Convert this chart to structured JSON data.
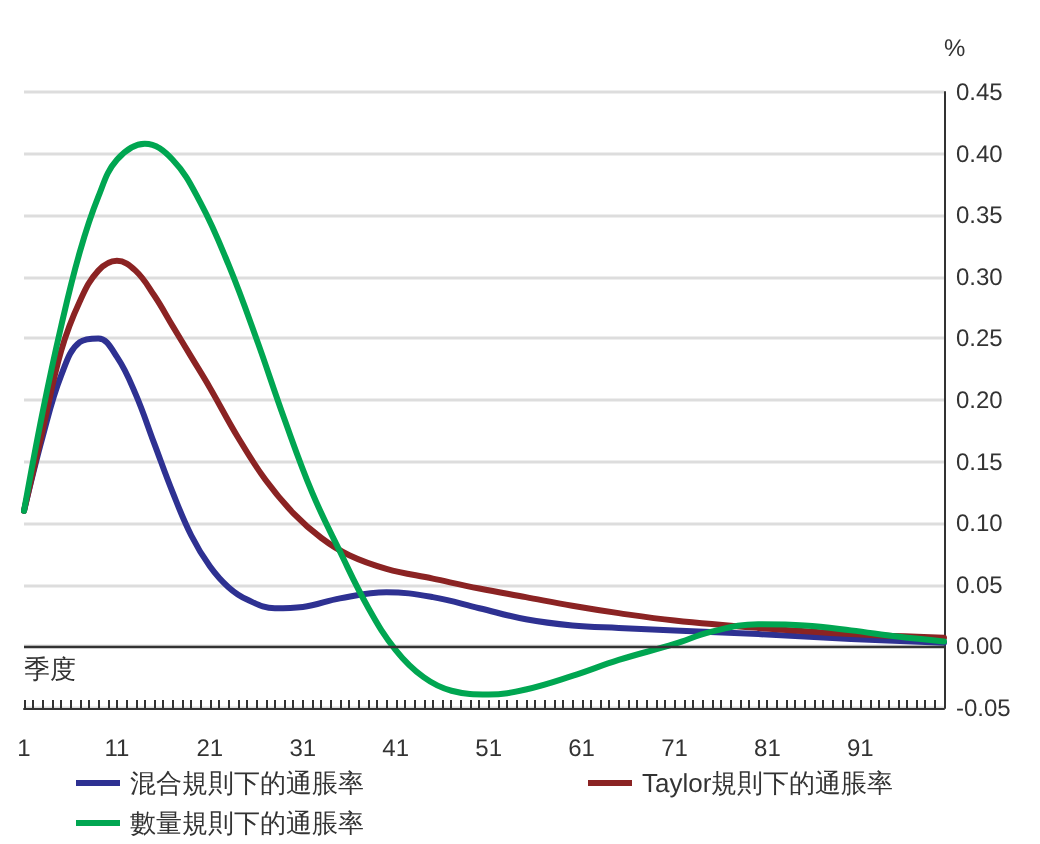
{
  "chart_data": {
    "type": "line",
    "xlabel": "季度",
    "ylabel": "%",
    "xlim": [
      1,
      100
    ],
    "xticks": [
      1,
      {
        "value": 2,
        "label": null
      },
      {
        "value": 3,
        "label": null
      },
      {
        "value": 4,
        "label": null
      },
      {
        "value": 5,
        "label": null
      },
      {
        "value": 6,
        "label": null
      },
      {
        "value": 7,
        "label": null
      },
      {
        "value": 8,
        "label": null
      },
      {
        "value": 9,
        "label": null
      },
      {
        "value": 10,
        "label": null
      },
      11,
      {
        "value": 12,
        "label": null
      },
      {
        "value": 13,
        "label": null
      },
      {
        "value": 14,
        "label": null
      },
      {
        "value": 15,
        "label": null
      },
      {
        "value": 16,
        "label": null
      },
      {
        "value": 17,
        "label": null
      },
      {
        "value": 18,
        "label": null
      },
      {
        "value": 19,
        "label": null
      },
      {
        "value": 20,
        "label": null
      },
      21,
      {
        "value": 22,
        "label": null
      },
      {
        "value": 23,
        "label": null
      },
      {
        "value": 24,
        "label": null
      },
      {
        "value": 25,
        "label": null
      },
      {
        "value": 26,
        "label": null
      },
      {
        "value": 27,
        "label": null
      },
      {
        "value": 28,
        "label": null
      },
      {
        "value": 29,
        "label": null
      },
      {
        "value": 30,
        "label": null
      },
      31,
      {
        "value": 32,
        "label": null
      },
      {
        "value": 33,
        "label": null
      },
      {
        "value": 34,
        "label": null
      },
      {
        "value": 35,
        "label": null
      },
      {
        "value": 36,
        "label": null
      },
      {
        "value": 37,
        "label": null
      },
      {
        "value": 38,
        "label": null
      },
      {
        "value": 39,
        "label": null
      },
      {
        "value": 40,
        "label": null
      },
      41,
      {
        "value": 42,
        "label": null
      },
      {
        "value": 43,
        "label": null
      },
      {
        "value": 44,
        "label": null
      },
      {
        "value": 45,
        "label": null
      },
      {
        "value": 46,
        "label": null
      },
      {
        "value": 47,
        "label": null
      },
      {
        "value": 48,
        "label": null
      },
      {
        "value": 49,
        "label": null
      },
      {
        "value": 50,
        "label": null
      },
      51,
      {
        "value": 52,
        "label": null
      },
      {
        "value": 53,
        "label": null
      },
      {
        "value": 54,
        "label": null
      },
      {
        "value": 55,
        "label": null
      },
      {
        "value": 56,
        "label": null
      },
      {
        "value": 57,
        "label": null
      },
      {
        "value": 58,
        "label": null
      },
      {
        "value": 59,
        "label": null
      },
      {
        "value": 60,
        "label": null
      },
      61,
      {
        "value": 62,
        "label": null
      },
      {
        "value": 63,
        "label": null
      },
      {
        "value": 64,
        "label": null
      },
      {
        "value": 65,
        "label": null
      },
      {
        "value": 66,
        "label": null
      },
      {
        "value": 67,
        "label": null
      },
      {
        "value": 68,
        "label": null
      },
      {
        "value": 69,
        "label": null
      },
      {
        "value": 70,
        "label": null
      },
      71,
      {
        "value": 72,
        "label": null
      },
      {
        "value": 73,
        "label": null
      },
      {
        "value": 74,
        "label": null
      },
      {
        "value": 75,
        "label": null
      },
      {
        "value": 76,
        "label": null
      },
      {
        "value": 77,
        "label": null
      },
      {
        "value": 78,
        "label": null
      },
      {
        "value": 79,
        "label": null
      },
      {
        "value": 80,
        "label": null
      },
      81,
      {
        "value": 82,
        "label": null
      },
      {
        "value": 83,
        "label": null
      },
      {
        "value": 84,
        "label": null
      },
      {
        "value": 85,
        "label": null
      },
      {
        "value": 86,
        "label": null
      },
      {
        "value": 87,
        "label": null
      },
      {
        "value": 88,
        "label": null
      },
      {
        "value": 89,
        "label": null
      },
      {
        "value": 90,
        "label": null
      },
      91,
      {
        "value": 92,
        "label": null
      },
      {
        "value": 93,
        "label": null
      },
      {
        "value": 94,
        "label": null
      },
      {
        "value": 95,
        "label": null
      },
      {
        "value": 96,
        "label": null
      },
      {
        "value": 97,
        "label": null
      },
      {
        "value": 98,
        "label": null
      },
      {
        "value": 99,
        "label": null
      },
      {
        "value": 100,
        "label": null
      }
    ],
    "ylim": [
      -0.05,
      0.45
    ],
    "yticks": [
      {
        "value": -0.05,
        "label": "-0.05"
      },
      {
        "value": 0,
        "label": "0.00"
      },
      {
        "value": 0.05,
        "label": "0.05"
      },
      {
        "value": 0.1,
        "label": "0.10"
      },
      {
        "value": 0.15,
        "label": "0.15"
      },
      {
        "value": 0.2,
        "label": "0.20"
      },
      {
        "value": 0.25,
        "label": "0.25"
      },
      {
        "value": 0.3,
        "label": "0.30"
      },
      {
        "value": 0.35,
        "label": "0.35"
      },
      {
        "value": 0.4,
        "label": "0.40"
      },
      {
        "value": 0.45,
        "label": "0.45"
      }
    ],
    "grid": "y",
    "legend": "bottom",
    "marker": "none",
    "line_style": "solid",
    "ref_lines": [
      {
        "axis": "y",
        "value": 0,
        "color": "#333333"
      }
    ],
    "series": [
      {
        "name": "混合規則下的通脹率",
        "color": "#2e3192",
        "x": [
          1,
          3,
          5,
          7,
          9,
          11,
          13,
          15,
          17,
          19,
          21,
          23,
          25,
          28,
          31,
          35,
          40,
          45,
          50,
          55,
          60,
          65,
          71,
          80,
          90,
          100
        ],
        "values": [
          0.11,
          0.17,
          0.22,
          0.247,
          0.25,
          0.235,
          0.205,
          0.165,
          0.125,
          0.09,
          0.065,
          0.048,
          0.038,
          0.031,
          0.032,
          0.039,
          0.044,
          0.04,
          0.031,
          0.022,
          0.017,
          0.015,
          0.013,
          0.01,
          0.006,
          0.003
        ]
      },
      {
        "name": "Taylor規則下的通脹率",
        "color": "#8b2323",
        "x": [
          1,
          3,
          5,
          7,
          9,
          11,
          13,
          15,
          17,
          19,
          21,
          24,
          27,
          30,
          33,
          36,
          40,
          45,
          50,
          55,
          60,
          65,
          71,
          80,
          90,
          100
        ],
        "values": [
          0.11,
          0.175,
          0.24,
          0.28,
          0.305,
          0.313,
          0.305,
          0.285,
          0.26,
          0.235,
          0.21,
          0.17,
          0.135,
          0.108,
          0.088,
          0.074,
          0.063,
          0.055,
          0.047,
          0.04,
          0.033,
          0.027,
          0.021,
          0.015,
          0.01,
          0.007
        ]
      },
      {
        "name": "數量規則下的通脹率",
        "color": "#00a651",
        "x": [
          1,
          3,
          5,
          7,
          9,
          11,
          14,
          17,
          20,
          23,
          26,
          29,
          32,
          35,
          38,
          41,
          44,
          47,
          51,
          55,
          60,
          65,
          71,
          75,
          80,
          85,
          90,
          95,
          100
        ],
        "values": [
          0.11,
          0.19,
          0.26,
          0.32,
          0.365,
          0.395,
          0.408,
          0.395,
          0.36,
          0.31,
          0.25,
          0.185,
          0.125,
          0.077,
          0.032,
          -0.003,
          -0.025,
          -0.036,
          -0.039,
          -0.035,
          -0.024,
          -0.011,
          0.002,
          0.012,
          0.018,
          0.017,
          0.013,
          0.008,
          0.004
        ]
      }
    ]
  }
}
